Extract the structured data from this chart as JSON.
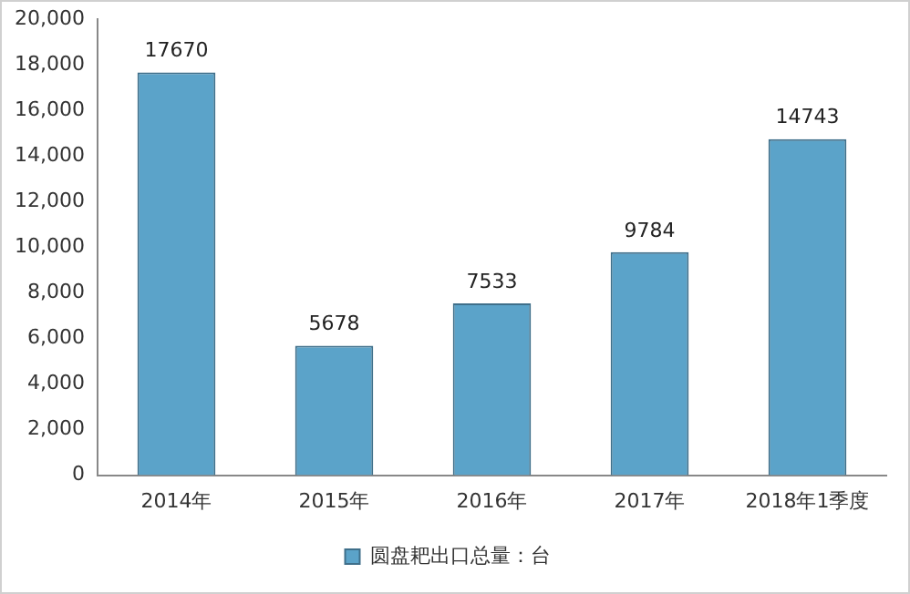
{
  "chart_data": {
    "type": "bar",
    "categories": [
      "2014年",
      "2015年",
      "2016年",
      "2017年",
      "2018年1季度"
    ],
    "series": [
      {
        "name": "圆盘耙出口总量：台",
        "color": "#5ba3c9",
        "values": [
          17670,
          5678,
          7533,
          9784,
          14743
        ]
      }
    ],
    "ylim": [
      0,
      20000
    ],
    "yticks": [
      0,
      {
        "value": 2000,
        "label": "2,000"
      },
      {
        "value": 4000,
        "label": "4,000"
      },
      {
        "value": 6000,
        "label": "6,000"
      },
      {
        "value": 8000,
        "label": "8,000"
      },
      {
        "value": 10000,
        "label": "10,000"
      },
      {
        "value": 12000,
        "label": "12,000"
      },
      {
        "value": 14000,
        "label": "14,000"
      },
      {
        "value": 16000,
        "label": "16,000"
      },
      {
        "value": 18000,
        "label": "18,000"
      },
      {
        "value": 20000,
        "label": "20,000"
      }
    ],
    "grid": false,
    "legend": "bottom",
    "data_labels": true
  }
}
